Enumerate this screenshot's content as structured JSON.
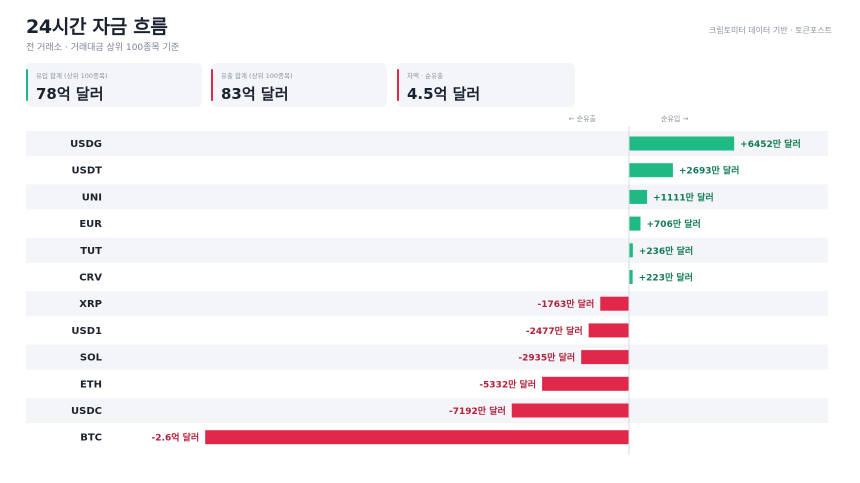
{
  "header": {
    "title": "24시간 자금 흐름",
    "subtitle": "전 거래소 · 거래대금 상위 100종목 기준",
    "source": "크립토미터 데이터 기반 · 토큰포스트"
  },
  "stats": [
    {
      "label": "유입 합계 (상위 100종목)",
      "value": "78억 달러",
      "accent": "#1fb984"
    },
    {
      "label": "유출 합계 (상위 100종목)",
      "value": "83억 달러",
      "accent": "#e0294a"
    },
    {
      "label": "차액 · 순유출",
      "value": "4.5억 달러",
      "accent": "#e0294a"
    }
  ],
  "chart_data": {
    "type": "bar",
    "orientation": "horizontal",
    "unit": "USD",
    "legend_negative": "← 순유출",
    "legend_positive": "순유입 →",
    "colors": {
      "positive": "#1fb984",
      "negative": "#e0294a",
      "row_band": "#f3f5f8"
    },
    "categories": [
      "USDG",
      "USDT",
      "UNI",
      "EUR",
      "TUT",
      "CRV",
      "XRP",
      "USD1",
      "SOL",
      "ETH",
      "USDC",
      "BTC"
    ],
    "values": [
      64520000,
      26930000,
      11110000,
      7060000,
      2360000,
      2230000,
      -17630000,
      -24770000,
      -29350000,
      -53320000,
      -71920000,
      -260000000
    ],
    "labels": [
      "+6452만 달러",
      "+2693만 달러",
      "+1111만 달러",
      "+706만 달러",
      "+236만 달러",
      "+223만 달러",
      "-1763만 달러",
      "-2477만 달러",
      "-2935만 달러",
      "-5332만 달러",
      "-7192만 달러",
      "-2.6억 달러"
    ]
  }
}
